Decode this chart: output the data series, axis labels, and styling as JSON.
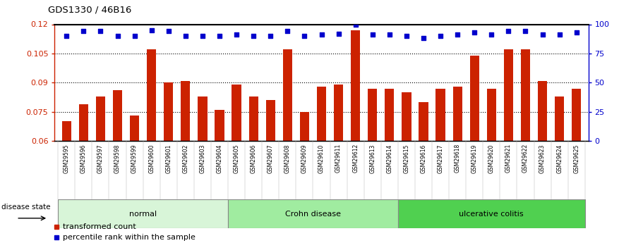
{
  "title": "GDS1330 / 46B16",
  "samples": [
    "GSM29595",
    "GSM29596",
    "GSM29597",
    "GSM29598",
    "GSM29599",
    "GSM29600",
    "GSM29601",
    "GSM29602",
    "GSM29603",
    "GSM29604",
    "GSM29605",
    "GSM29606",
    "GSM29607",
    "GSM29608",
    "GSM29609",
    "GSM29610",
    "GSM29611",
    "GSM29612",
    "GSM29613",
    "GSM29614",
    "GSM29615",
    "GSM29616",
    "GSM29617",
    "GSM29618",
    "GSM29619",
    "GSM29620",
    "GSM29621",
    "GSM29622",
    "GSM29623",
    "GSM29624",
    "GSM29625"
  ],
  "bar_values": [
    0.07,
    0.079,
    0.083,
    0.086,
    0.073,
    0.107,
    0.09,
    0.091,
    0.083,
    0.076,
    0.089,
    0.083,
    0.081,
    0.107,
    0.075,
    0.088,
    0.089,
    0.117,
    0.087,
    0.087,
    0.085,
    0.08,
    0.087,
    0.088,
    0.104,
    0.087,
    0.107,
    0.107,
    0.091,
    0.083,
    0.087
  ],
  "percentile_values": [
    90,
    94,
    94,
    90,
    90,
    95,
    94,
    90,
    90,
    90,
    91,
    90,
    90,
    94,
    90,
    91,
    92,
    100,
    91,
    91,
    90,
    88,
    90,
    91,
    93,
    91,
    94,
    94,
    91,
    91,
    93
  ],
  "groups": [
    {
      "label": "normal",
      "start": 0,
      "end": 10,
      "color": "#d8f5d8"
    },
    {
      "label": "Crohn disease",
      "start": 10,
      "end": 20,
      "color": "#a0eca0"
    },
    {
      "label": "ulcerative colitis",
      "start": 20,
      "end": 31,
      "color": "#50d050"
    }
  ],
  "ylim_left": [
    0.06,
    0.12
  ],
  "ylim_right": [
    0,
    100
  ],
  "yticks_left": [
    0.06,
    0.075,
    0.09,
    0.105,
    0.12
  ],
  "yticks_right": [
    0,
    25,
    50,
    75,
    100
  ],
  "bar_color": "#cc2200",
  "dot_color": "#0000cc",
  "background_color": "#ffffff",
  "legend_items": [
    "transformed count",
    "percentile rank within the sample"
  ],
  "disease_state_label": "disease state",
  "xtick_bg_color": "#c8c8c8",
  "group_border_color": "#888888"
}
